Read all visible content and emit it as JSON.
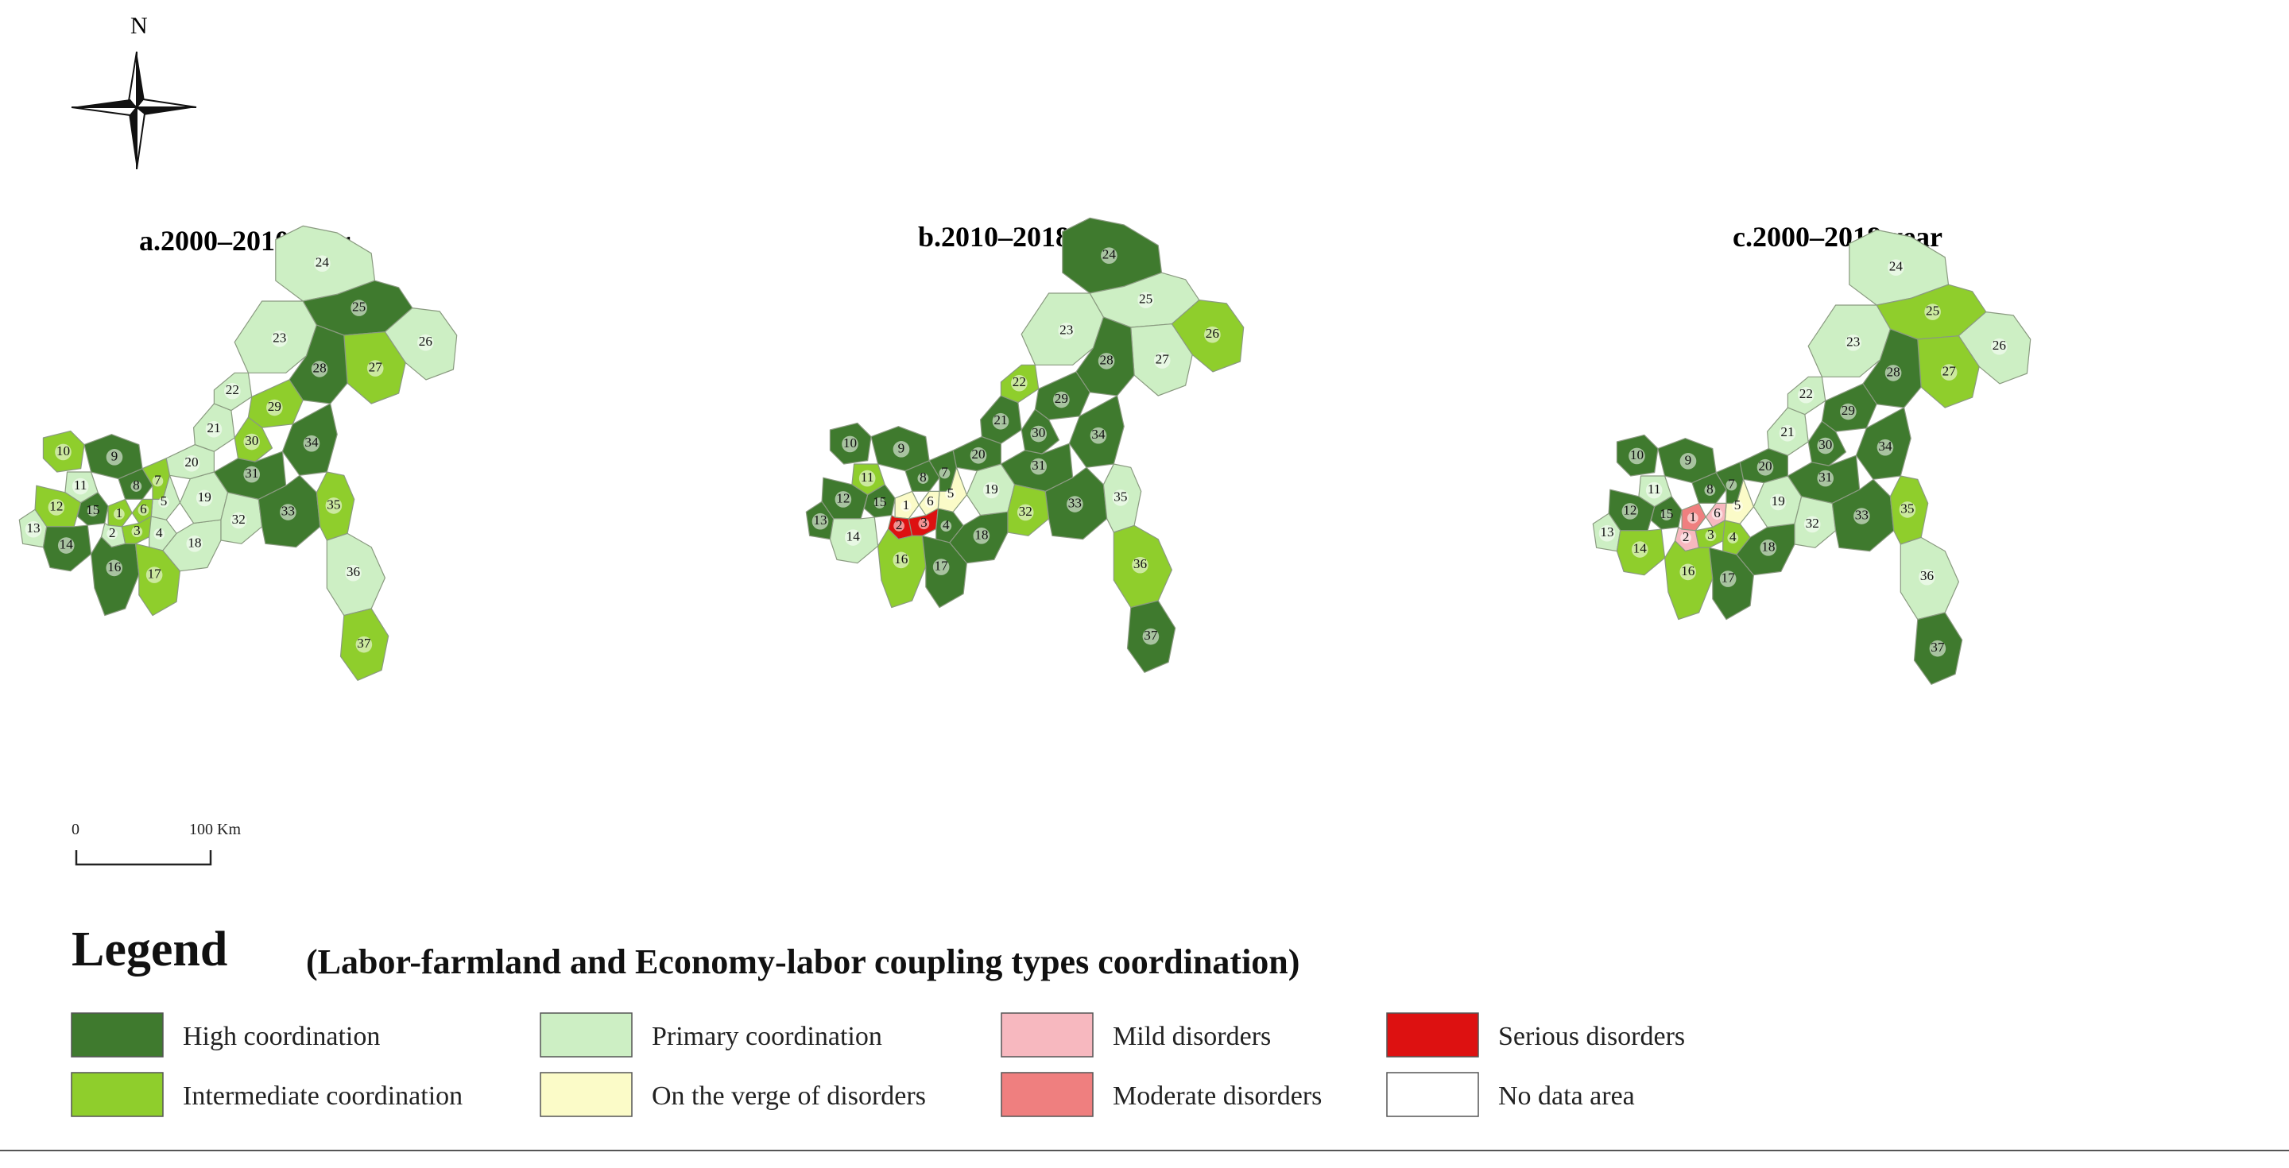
{
  "north_arrow": {
    "label": "N"
  },
  "panels": [
    {
      "title": "a.2000–2010 year",
      "classes": {
        "1": "intermediate",
        "2": "primary",
        "3": "intermediate",
        "4": "primary",
        "5": "primary",
        "6": "intermediate",
        "7": "intermediate",
        "8": "high",
        "9": "high",
        "10": "intermediate",
        "11": "primary",
        "12": "intermediate",
        "13": "primary",
        "14": "high",
        "15": "high",
        "16": "high",
        "17": "intermediate",
        "18": "primary",
        "19": "primary",
        "20": "primary",
        "21": "primary",
        "22": "primary",
        "23": "primary",
        "24": "primary",
        "25": "high",
        "26": "primary",
        "27": "intermediate",
        "28": "high",
        "29": "intermediate",
        "30": "intermediate",
        "31": "high",
        "32": "primary",
        "33": "high",
        "34": "high",
        "35": "intermediate",
        "36": "primary",
        "37": "intermediate"
      }
    },
    {
      "title": "b.2010–2018 year",
      "classes": {
        "1": "verge",
        "2": "serious",
        "3": "serious",
        "4": "high",
        "5": "verge",
        "6": "verge",
        "7": "high",
        "8": "high",
        "9": "high",
        "10": "high",
        "11": "intermediate",
        "12": "high",
        "13": "high",
        "14": "primary",
        "15": "high",
        "16": "intermediate",
        "17": "high",
        "18": "high",
        "19": "primary",
        "20": "high",
        "21": "high",
        "22": "intermediate",
        "23": "primary",
        "24": "high",
        "25": "primary",
        "26": "intermediate",
        "27": "primary",
        "28": "high",
        "29": "high",
        "30": "high",
        "31": "high",
        "32": "intermediate",
        "33": "high",
        "34": "high",
        "35": "primary",
        "36": "intermediate",
        "37": "high"
      }
    },
    {
      "title": "c.2000–2018 year",
      "classes": {
        "1": "moderate",
        "2": "mild",
        "3": "intermediate",
        "4": "intermediate",
        "5": "verge",
        "6": "mild",
        "7": "high",
        "8": "high",
        "9": "high",
        "10": "high",
        "11": "primary",
        "12": "high",
        "13": "primary",
        "14": "intermediate",
        "15": "high",
        "16": "intermediate",
        "17": "high",
        "18": "high",
        "19": "primary",
        "20": "high",
        "21": "primary",
        "22": "primary",
        "23": "primary",
        "24": "primary",
        "25": "intermediate",
        "26": "primary",
        "27": "intermediate",
        "28": "high",
        "29": "high",
        "30": "high",
        "31": "high",
        "32": "primary",
        "33": "high",
        "34": "high",
        "35": "intermediate",
        "36": "primary",
        "37": "high"
      }
    }
  ],
  "scale_bar": {
    "start": "0",
    "end": "100 Km"
  },
  "legend": {
    "title": "Legend",
    "subtitle": "(Labor-farmland and Economy-labor coupling types coordination)",
    "items": [
      {
        "key": "high",
        "label": "High  coordination",
        "color": "#3f7a2e"
      },
      {
        "key": "intermediate",
        "label": "Intermediate coordination",
        "color": "#8fce2c"
      },
      {
        "key": "primary",
        "label": "Primary coordination",
        "color": "#cdefc4"
      },
      {
        "key": "verge",
        "label": "On the verge of disorders",
        "color": "#fbfbc8"
      },
      {
        "key": "mild",
        "label": "Mild disorders",
        "color": "#f7b8bf"
      },
      {
        "key": "moderate",
        "label": "Moderate disorders",
        "color": "#ef7f7f"
      },
      {
        "key": "serious",
        "label": "Serious disorders",
        "color": "#dd1111"
      },
      {
        "key": "nodata",
        "label": "No data area",
        "color": "#ffffff"
      }
    ]
  }
}
